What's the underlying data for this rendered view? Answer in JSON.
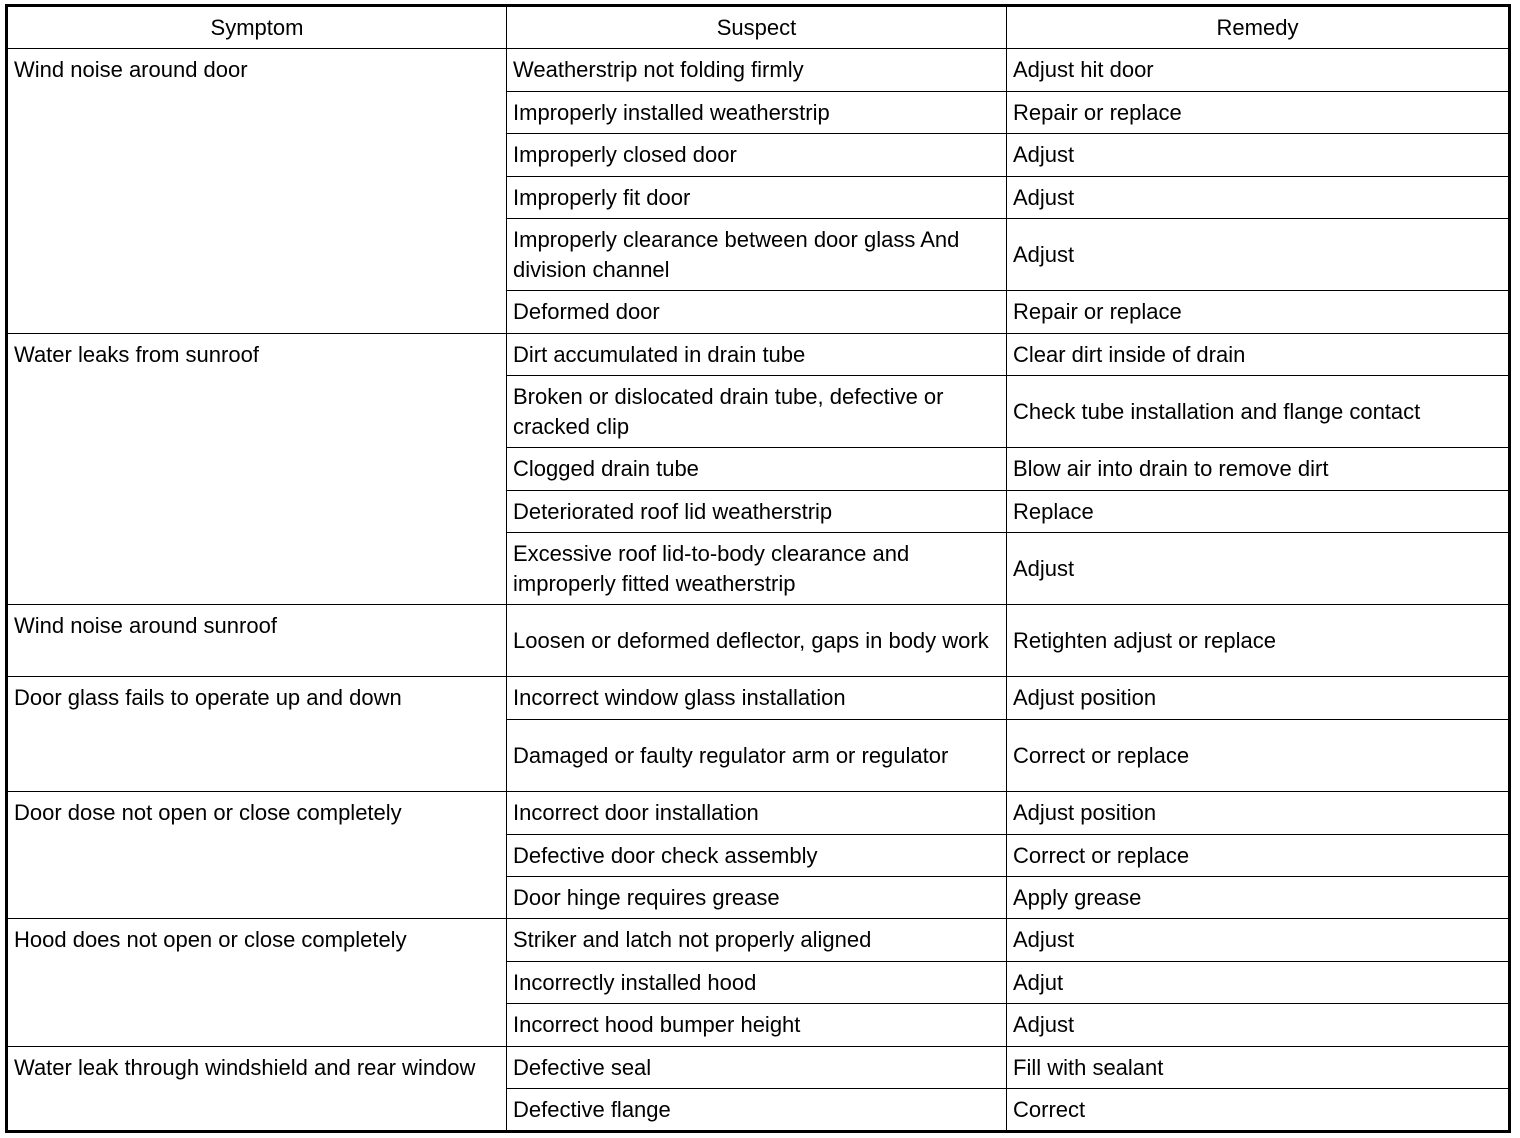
{
  "headers": [
    "Symptom",
    "Suspect",
    "Remedy"
  ],
  "groups": [
    {
      "symptom": "Wind noise around door",
      "rows": [
        [
          "Weatherstrip not folding firmly",
          "Adjust hit door"
        ],
        [
          "Improperly installed weatherstrip",
          "Repair or replace"
        ],
        [
          "Improperly closed door",
          "Adjust"
        ],
        [
          "Improperly fit door",
          "Adjust"
        ],
        [
          "Improperly clearance between door glass And division channel",
          "Adjust"
        ],
        [
          "Deformed door",
          "Repair or replace"
        ]
      ]
    },
    {
      "symptom": "Water leaks from sunroof",
      "rows": [
        [
          "Dirt accumulated in drain tube",
          "Clear dirt inside of drain"
        ],
        [
          "Broken or dislocated drain tube, defective or cracked clip",
          "Check tube installation and flange contact"
        ],
        [
          "Clogged drain tube",
          "Blow air into drain to remove dirt"
        ],
        [
          "Deteriorated roof lid weatherstrip",
          "Replace"
        ],
        [
          "Excessive roof lid-to-body clearance and improperly fitted weatherstrip",
          "Adjust"
        ]
      ]
    },
    {
      "symptom": "Wind noise around sunroof",
      "rows": [
        [
          "Loosen or deformed deflector, gaps in body work",
          "Retighten adjust or replace"
        ]
      ]
    },
    {
      "symptom": "Door glass fails to operate up and down",
      "rows": [
        [
          "Incorrect window glass installation",
          "Adjust position"
        ],
        [
          "Damaged or faulty regulator arm or regulator",
          "Correct or replace"
        ]
      ]
    },
    {
      "symptom": "Door dose not open or close completely",
      "rows": [
        [
          "Incorrect door installation",
          "Adjust position"
        ],
        [
          "Defective door check assembly",
          "Correct or replace"
        ],
        [
          "Door hinge requires grease",
          "Apply grease"
        ]
      ]
    },
    {
      "symptom": "Hood does not open or close completely",
      "rows": [
        [
          "Striker and latch not properly aligned",
          "Adjust"
        ],
        [
          "Incorrectly installed hood",
          "Adjut"
        ],
        [
          "Incorrect hood bumper height",
          "Adjust"
        ]
      ]
    },
    {
      "symptom": "Water leak through windshield and rear window",
      "rows": [
        [
          "Defective seal",
          "Fill with sealant"
        ],
        [
          "Defective flange",
          "Correct"
        ]
      ]
    }
  ]
}
